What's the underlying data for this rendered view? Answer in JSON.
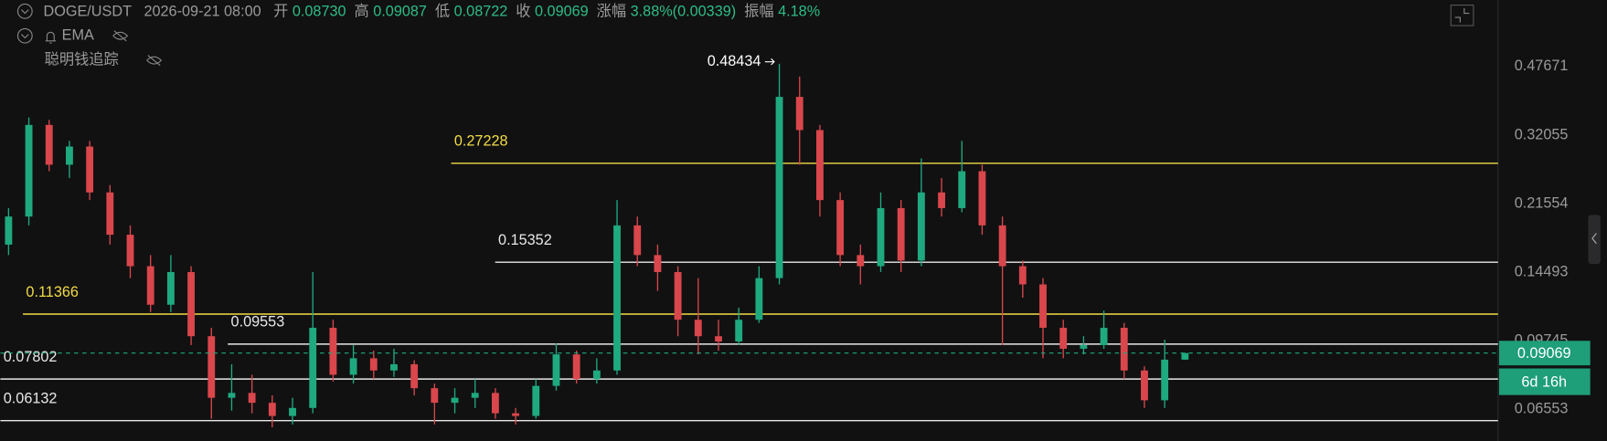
{
  "header": {
    "symbol": "DOGE/USDT",
    "time": "2026-09-21 08:00",
    "fields": [
      {
        "label": "开",
        "value": "0.08730"
      },
      {
        "label": "高",
        "value": "0.09087"
      },
      {
        "label": "低",
        "value": "0.08722"
      },
      {
        "label": "收",
        "value": "0.09069"
      },
      {
        "label": "涨幅",
        "value": "3.88%(0.00339)"
      },
      {
        "label": "振幅",
        "value": "4.18%"
      }
    ],
    "indicator": "EMA",
    "tracker": "聪明钱追踪"
  },
  "chart_data": {
    "type": "candlestick",
    "log_scale": true,
    "up_color": "#1fa97f",
    "down_color": "#d9464b",
    "ylim": [
      0.0545,
      0.701
    ],
    "yticks": [
      0.47671,
      0.32055,
      0.21554,
      0.14493,
      0.09745,
      0.06553
    ],
    "ohlc": [
      [
        0.17,
        0.21,
        0.16,
        0.2
      ],
      [
        0.2,
        0.355,
        0.19,
        0.34
      ],
      [
        0.34,
        0.35,
        0.26,
        0.27
      ],
      [
        0.27,
        0.31,
        0.25,
        0.3
      ],
      [
        0.3,
        0.31,
        0.22,
        0.23
      ],
      [
        0.23,
        0.24,
        0.17,
        0.18
      ],
      [
        0.18,
        0.19,
        0.14,
        0.15
      ],
      [
        0.15,
        0.16,
        0.115,
        0.12
      ],
      [
        0.12,
        0.16,
        0.115,
        0.145
      ],
      [
        0.145,
        0.15,
        0.095,
        0.1
      ],
      [
        0.1,
        0.105,
        0.062,
        0.07
      ],
      [
        0.07,
        0.085,
        0.065,
        0.072
      ],
      [
        0.072,
        0.08,
        0.064,
        0.068
      ],
      [
        0.068,
        0.071,
        0.059,
        0.063
      ],
      [
        0.063,
        0.07,
        0.06,
        0.066
      ],
      [
        0.066,
        0.145,
        0.064,
        0.105
      ],
      [
        0.105,
        0.11,
        0.077,
        0.08
      ],
      [
        0.08,
        0.095,
        0.076,
        0.088
      ],
      [
        0.088,
        0.092,
        0.078,
        0.082
      ],
      [
        0.082,
        0.093,
        0.079,
        0.085
      ],
      [
        0.085,
        0.087,
        0.071,
        0.074
      ],
      [
        0.074,
        0.076,
        0.06,
        0.068
      ],
      [
        0.068,
        0.074,
        0.064,
        0.07
      ],
      [
        0.07,
        0.078,
        0.066,
        0.072
      ],
      [
        0.072,
        0.074,
        0.062,
        0.064
      ],
      [
        0.064,
        0.066,
        0.06,
        0.063
      ],
      [
        0.063,
        0.078,
        0.062,
        0.075
      ],
      [
        0.075,
        0.096,
        0.073,
        0.09
      ],
      [
        0.09,
        0.092,
        0.076,
        0.078
      ],
      [
        0.078,
        0.088,
        0.076,
        0.082
      ],
      [
        0.082,
        0.22,
        0.08,
        0.19
      ],
      [
        0.19,
        0.2,
        0.15,
        0.16
      ],
      [
        0.16,
        0.17,
        0.13,
        0.145
      ],
      [
        0.145,
        0.15,
        0.1,
        0.11
      ],
      [
        0.11,
        0.14,
        0.09,
        0.1
      ],
      [
        0.1,
        0.11,
        0.092,
        0.097
      ],
      [
        0.097,
        0.118,
        0.095,
        0.11
      ],
      [
        0.11,
        0.15,
        0.108,
        0.14
      ],
      [
        0.14,
        0.48434,
        0.135,
        0.4
      ],
      [
        0.4,
        0.45,
        0.27,
        0.33
      ],
      [
        0.33,
        0.34,
        0.2,
        0.22
      ],
      [
        0.22,
        0.23,
        0.15,
        0.16
      ],
      [
        0.16,
        0.17,
        0.135,
        0.15
      ],
      [
        0.15,
        0.23,
        0.145,
        0.21
      ],
      [
        0.21,
        0.22,
        0.145,
        0.155
      ],
      [
        0.155,
        0.28,
        0.15,
        0.23
      ],
      [
        0.23,
        0.25,
        0.2,
        0.21
      ],
      [
        0.21,
        0.31,
        0.205,
        0.26
      ],
      [
        0.26,
        0.27,
        0.18,
        0.19
      ],
      [
        0.19,
        0.2,
        0.095,
        0.15
      ],
      [
        0.15,
        0.155,
        0.125,
        0.135
      ],
      [
        0.135,
        0.14,
        0.088,
        0.105
      ],
      [
        0.105,
        0.11,
        0.088,
        0.093
      ],
      [
        0.093,
        0.1,
        0.09,
        0.095
      ],
      [
        0.095,
        0.116,
        0.093,
        0.105
      ],
      [
        0.105,
        0.108,
        0.078,
        0.082
      ],
      [
        0.082,
        0.084,
        0.066,
        0.069
      ],
      [
        0.069,
        0.098,
        0.066,
        0.0873
      ],
      [
        0.0873,
        0.09087,
        0.08722,
        0.09069
      ]
    ],
    "high_marker": 0.48434,
    "levels": [
      {
        "value": 0.27228,
        "color": "#f2dc45"
      },
      {
        "value": 0.15352,
        "color": "#e8e8e8"
      },
      {
        "value": 0.11366,
        "color": "#f2dc45"
      },
      {
        "value": 0.09553,
        "color": "#e8e8e8"
      },
      {
        "value": 0.07802,
        "color": "#e8e8e8"
      },
      {
        "value": 0.06132,
        "color": "#e8e8e8"
      }
    ],
    "last_price": 0.09069,
    "countdown": "6d 16h"
  }
}
